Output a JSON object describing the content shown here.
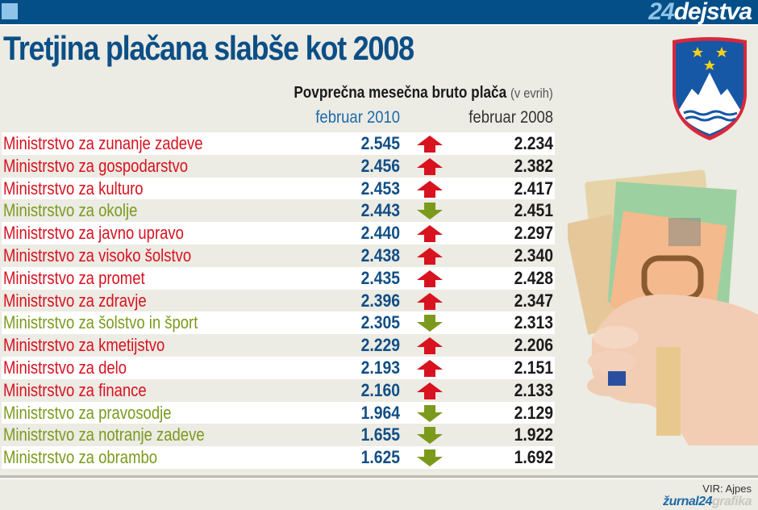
{
  "header": {
    "brand_number": "24",
    "brand_word": "dejstva",
    "title": "Tretjina plačana slabše kot 2008"
  },
  "table_header": {
    "subtitle_bold": "Povprečna mesečna bruto plača",
    "subtitle_unit": "(v evrih)",
    "col_2010": "februar 2010",
    "col_2008": "februar 2008"
  },
  "rows": [
    {
      "name": "Ministrstvo za zunanje zadeve",
      "v2010": "2.545",
      "trend": "up",
      "v2008": "2.234"
    },
    {
      "name": "Ministrstvo za gospodarstvo",
      "v2010": "2.456",
      "trend": "up",
      "v2008": "2.382"
    },
    {
      "name": "Ministrstvo za kulturo",
      "v2010": "2.453",
      "trend": "up",
      "v2008": "2.417"
    },
    {
      "name": "Ministrstvo za okolje",
      "v2010": "2.443",
      "trend": "down",
      "v2008": "2.451"
    },
    {
      "name": "Ministrstvo za javno upravo",
      "v2010": "2.440",
      "trend": "up",
      "v2008": "2.297"
    },
    {
      "name": "Ministrstvo za visoko šolstvo",
      "v2010": "2.438",
      "trend": "up",
      "v2008": "2.340"
    },
    {
      "name": "Ministrstvo za promet",
      "v2010": "2.435",
      "trend": "up",
      "v2008": "2.428"
    },
    {
      "name": "Ministrstvo za zdravje",
      "v2010": "2.396",
      "trend": "up",
      "v2008": "2.347"
    },
    {
      "name": "Ministrstvo za šolstvo in šport",
      "v2010": "2.305",
      "trend": "down",
      "v2008": "2.313"
    },
    {
      "name": "Ministrstvo za kmetijstvo",
      "v2010": "2.229",
      "trend": "up",
      "v2008": "2.206"
    },
    {
      "name": "Ministrstvo za delo",
      "v2010": "2.193",
      "trend": "up",
      "v2008": "2.151"
    },
    {
      "name": "Ministrstvo za finance",
      "v2010": "2.160",
      "trend": "up",
      "v2008": "2.133"
    },
    {
      "name": "Ministrstvo za pravosodje",
      "v2010": "1.964",
      "trend": "down",
      "v2008": "2.129"
    },
    {
      "name": "Ministrstvo za notranje zadeve",
      "v2010": "1.655",
      "trend": "down",
      "v2008": "1.922"
    },
    {
      "name": "Ministrstvo za obrambo",
      "v2010": "1.625",
      "trend": "down",
      "v2008": "1.692"
    }
  ],
  "footer": {
    "source": "VIR: Ajpes",
    "brand_a": "žurnal24",
    "brand_b": "grafika"
  },
  "colors": {
    "header_blue": "#044f88",
    "up_red": "#d8121f",
    "down_green": "#7b9a1c",
    "value_blue": "#104e85"
  },
  "chart_data": {
    "type": "table",
    "title": "Tretjina plačana slabše kot 2008",
    "subtitle": "Povprečna mesečna bruto plača (v evrih)",
    "columns": [
      "Ministrstvo",
      "februar 2010",
      "trend",
      "februar 2008"
    ],
    "categories": [
      "Ministrstvo za zunanje zadeve",
      "Ministrstvo za gospodarstvo",
      "Ministrstvo za kulturo",
      "Ministrstvo za okolje",
      "Ministrstvo za javno upravo",
      "Ministrstvo za visoko šolstvo",
      "Ministrstvo za promet",
      "Ministrstvo za zdravje",
      "Ministrstvo za šolstvo in šport",
      "Ministrstvo za kmetijstvo",
      "Ministrstvo za delo",
      "Ministrstvo za finance",
      "Ministrstvo za pravosodje",
      "Ministrstvo za notranje zadeve",
      "Ministrstvo za obrambo"
    ],
    "series": [
      {
        "name": "februar 2010",
        "values": [
          2545,
          2456,
          2453,
          2443,
          2440,
          2438,
          2435,
          2396,
          2305,
          2229,
          2193,
          2160,
          1964,
          1655,
          1625
        ]
      },
      {
        "name": "februar 2008",
        "values": [
          2234,
          2382,
          2417,
          2451,
          2297,
          2340,
          2428,
          2347,
          2313,
          2206,
          2151,
          2133,
          2129,
          1922,
          1692
        ]
      }
    ],
    "trend": [
      "up",
      "up",
      "up",
      "down",
      "up",
      "up",
      "up",
      "up",
      "down",
      "up",
      "up",
      "up",
      "down",
      "down",
      "down"
    ],
    "unit": "EUR",
    "source": "VIR: Ajpes"
  }
}
